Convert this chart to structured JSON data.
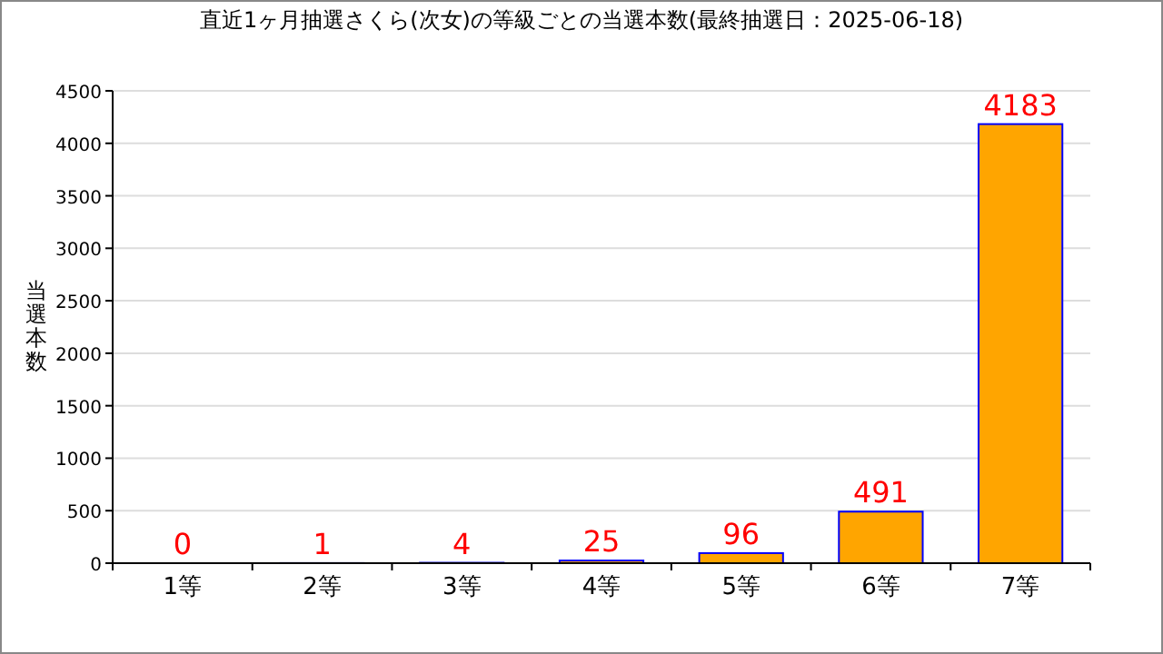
{
  "chart_data": {
    "type": "bar",
    "title": "直近1ヶ月抽選さくら(次女)の等級ごとの当選本数(最終抽選日：2025-06-18)",
    "ylabel": "当選本数",
    "categories": [
      "1等",
      "2等",
      "3等",
      "4等",
      "5等",
      "6等",
      "7等"
    ],
    "values": [
      0,
      1,
      4,
      25,
      96,
      491,
      4183
    ],
    "color": "#ffa500",
    "ylim": [
      0,
      4500
    ],
    "yticks": [
      0,
      500,
      1000,
      1500,
      2000,
      2500,
      3000,
      3500,
      4000,
      4500
    ],
    "grid": "y",
    "data_labels": true
  }
}
